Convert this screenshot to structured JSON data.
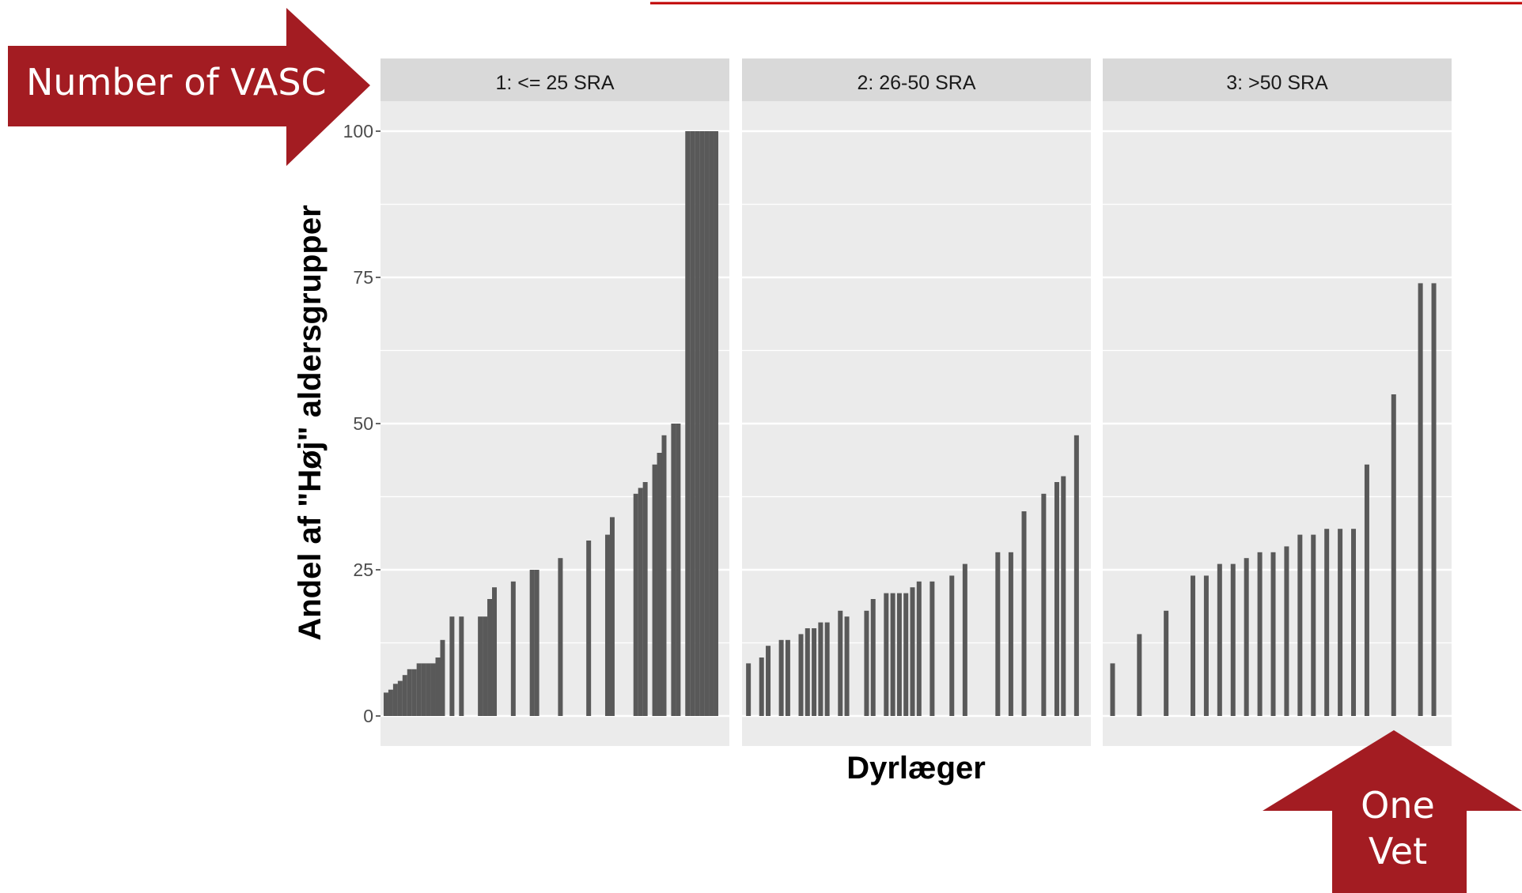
{
  "colors": {
    "panel_background": "#ebebeb",
    "strip_background": "#d9d9d9",
    "gridline": "#ffffff",
    "bar": "#595959",
    "callout": "#a31c22",
    "top_link_line": "#c00000"
  },
  "callouts": {
    "left": "Number of VASC",
    "bottom_line1": "One",
    "bottom_line2": "Vet"
  },
  "chart_data": {
    "type": "bar",
    "xlabel": "Dyrlæger",
    "ylabel": "Andel af \"Høj\" aldersgrupper",
    "ylim": [
      0,
      105
    ],
    "yticks": [
      0,
      25,
      50,
      75,
      100
    ],
    "grid": true,
    "panels": [
      {
        "name": "1: <= 25 SRA",
        "x": [
          1,
          2,
          3,
          4,
          5,
          6,
          7,
          8,
          9,
          10,
          11,
          12,
          13,
          15,
          17,
          21,
          22,
          23,
          24,
          28,
          32,
          33,
          38,
          44,
          48,
          49,
          54,
          55,
          56,
          58,
          59,
          60,
          62,
          63,
          65,
          66,
          67,
          68,
          69,
          70,
          71
        ],
        "values": [
          4,
          4.5,
          5.5,
          6,
          7,
          8,
          8,
          9,
          9,
          9,
          9,
          10,
          13,
          17,
          17,
          17,
          17,
          20,
          22,
          23,
          25,
          25,
          27,
          30,
          31,
          34,
          38,
          39,
          40,
          43,
          45,
          48,
          50,
          50,
          100,
          100,
          100,
          100,
          100,
          100,
          100
        ]
      },
      {
        "name": "2: 26-50 SRA",
        "x": [
          1,
          3,
          4,
          6,
          7,
          9,
          10,
          11,
          12,
          13,
          15,
          16,
          19,
          20,
          22,
          23,
          24,
          25,
          26,
          27,
          29,
          32,
          34,
          39,
          41,
          43,
          46,
          48,
          49,
          51
        ],
        "values": [
          9,
          10,
          12,
          13,
          13,
          14,
          15,
          15,
          16,
          16,
          18,
          17,
          18,
          20,
          21,
          21,
          21,
          21,
          22,
          23,
          23,
          24,
          26,
          28,
          28,
          35,
          38,
          40,
          41,
          48
        ]
      },
      {
        "name": "3: >50 SRA",
        "x": [
          1,
          3,
          5,
          7,
          8,
          9,
          10,
          11,
          12,
          13,
          14,
          15,
          16,
          17,
          18,
          19,
          20,
          22,
          24,
          25
        ],
        "values": [
          9,
          14,
          18,
          24,
          24,
          26,
          26,
          27,
          28,
          28,
          29,
          31,
          31,
          32,
          32,
          32,
          43,
          55,
          74,
          74
        ]
      }
    ]
  }
}
